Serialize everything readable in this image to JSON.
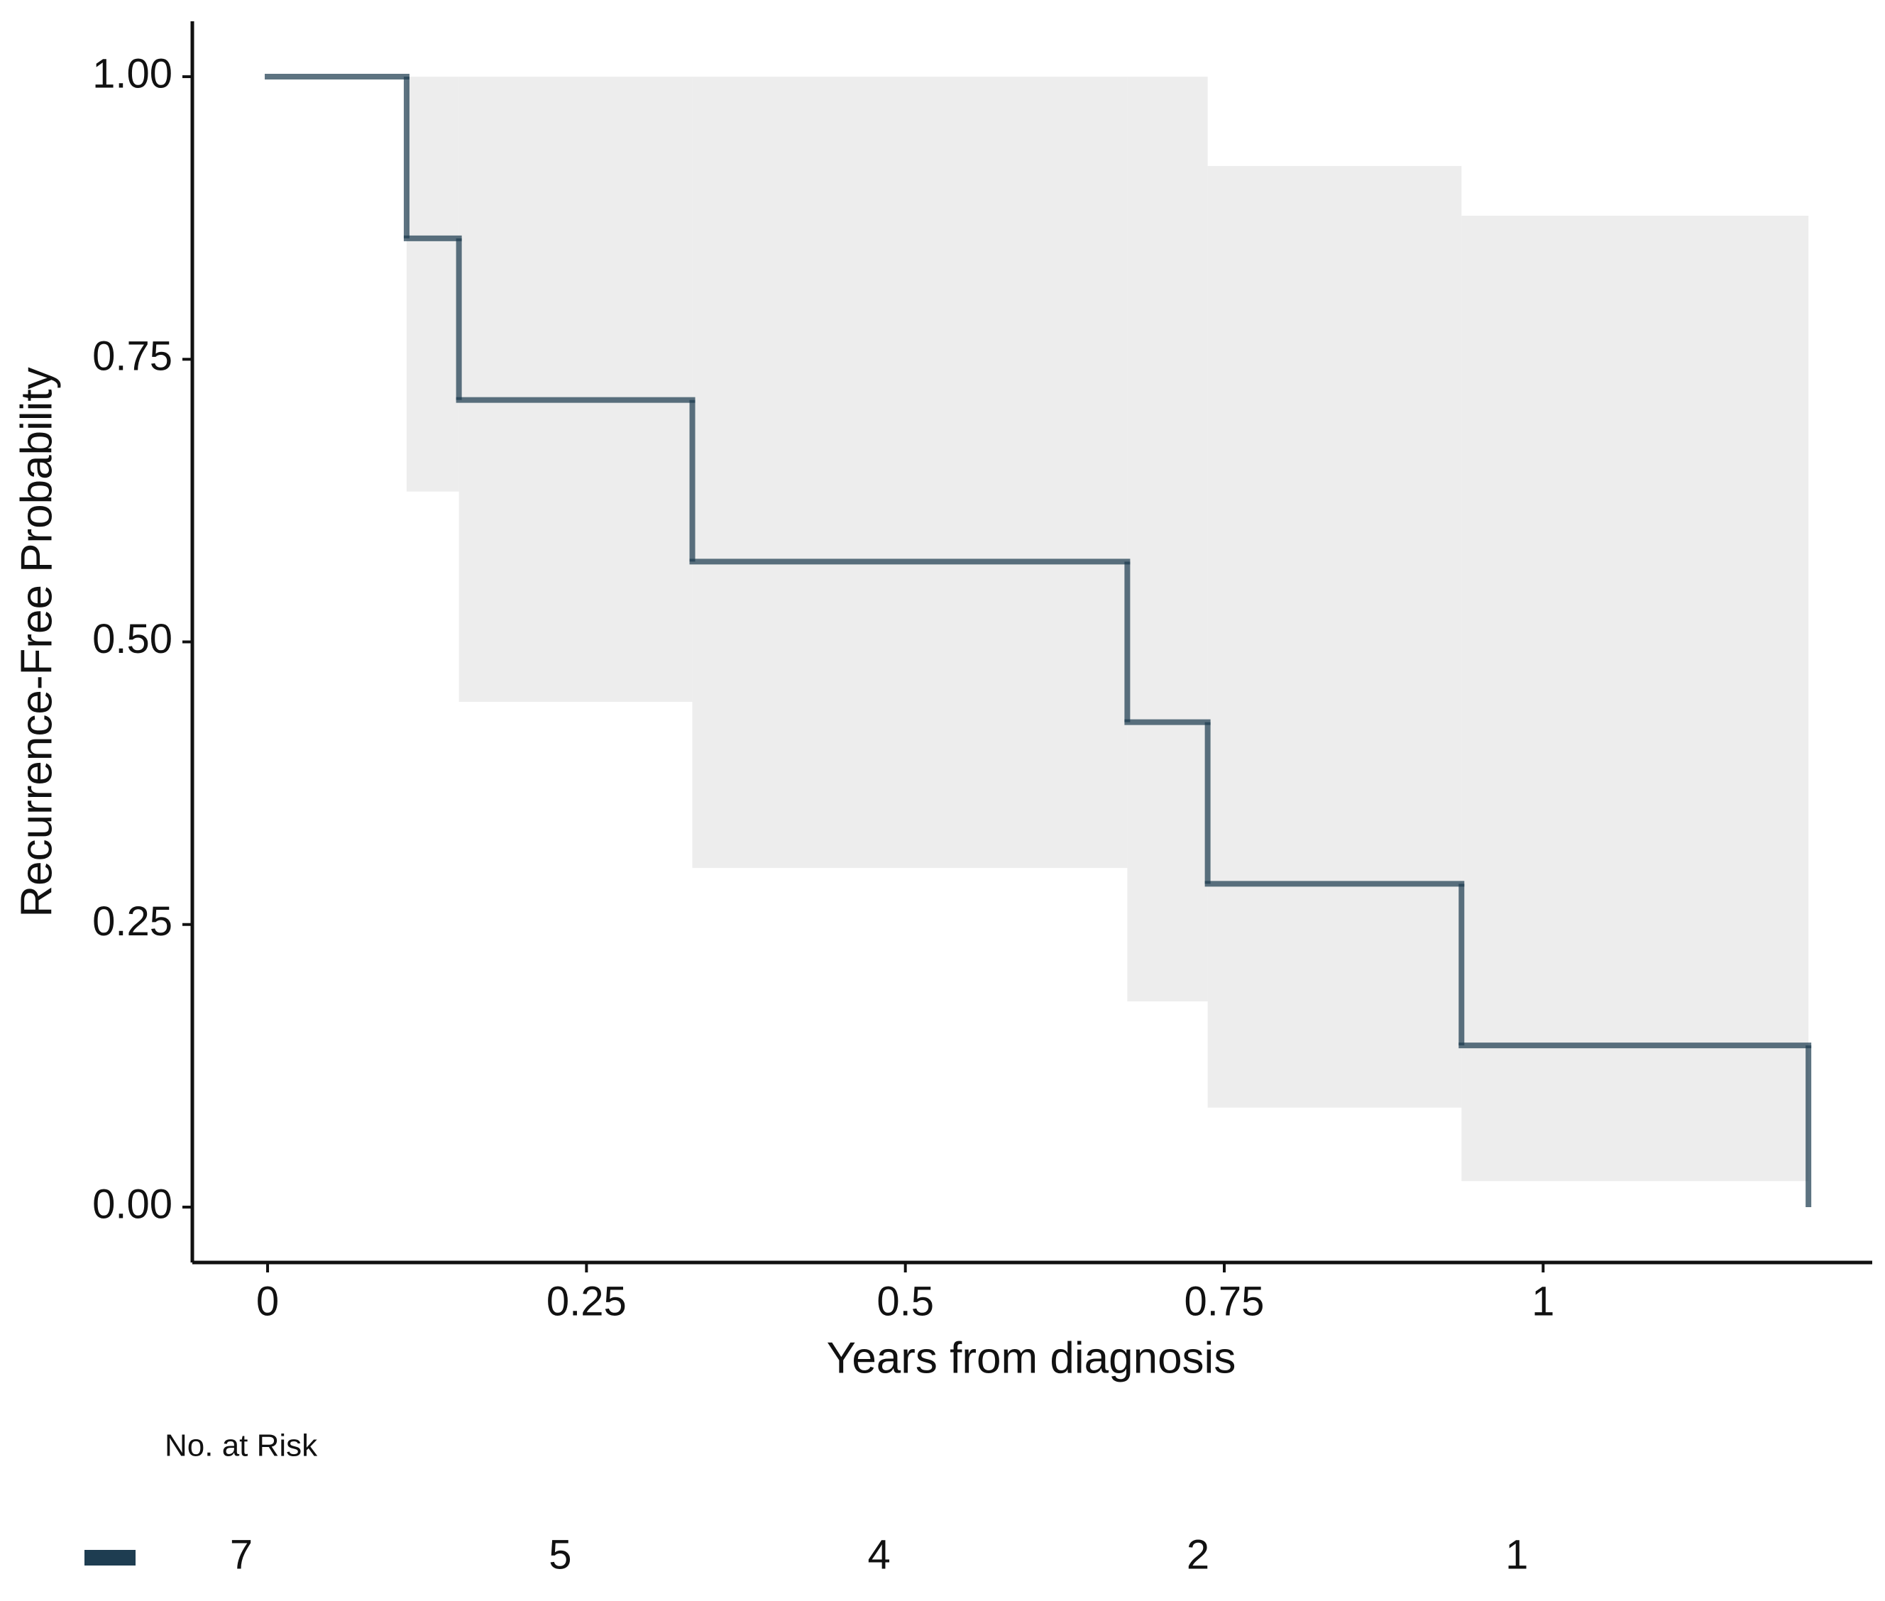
{
  "chart_data": {
    "type": "km",
    "x_label": "Years from diagnosis",
    "y_label": "Recurrence-Free Probability",
    "xlim": [
      -0.059,
      1.258
    ],
    "ylim": [
      -0.049,
      1.049
    ],
    "xticks": [
      0,
      0.25,
      0.5,
      0.75,
      1
    ],
    "yticks": [
      {
        "value": 0,
        "label": "0.00"
      },
      {
        "value": 0.25,
        "label": "0.25"
      },
      {
        "value": 0.5,
        "label": "0.50"
      },
      {
        "value": 0.75,
        "label": "0.75"
      },
      {
        "value": 1,
        "label": "1.00"
      }
    ],
    "ci_color": "#ededed",
    "series": [
      {
        "color": "#1e3d51",
        "x": [
          0,
          0.109,
          0.15,
          0.333,
          0.674,
          0.737,
          0.936,
          1.208
        ],
        "values": [
          1,
          0.857,
          0.714,
          0.571,
          0.429,
          0.286,
          0.143,
          0
        ],
        "ci_lower": [
          1,
          0.633,
          0.447,
          0.3,
          0.182,
          0.088,
          0.023,
          null
        ],
        "ci_upper": [
          1,
          1,
          1,
          1,
          1,
          0.921,
          0.877,
          null
        ]
      }
    ],
    "risk_table": {
      "title": "No. at Risk",
      "counts": [
        7,
        5,
        4,
        2,
        1
      ]
    }
  }
}
